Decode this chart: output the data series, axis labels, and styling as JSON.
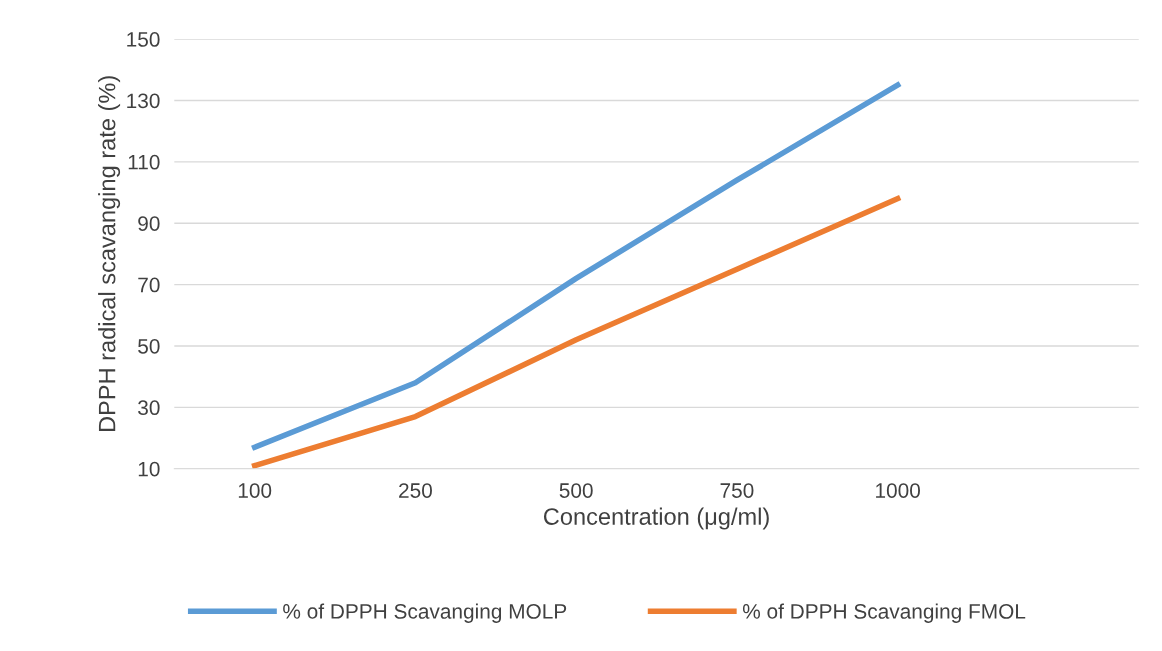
{
  "chart_data": {
    "type": "line",
    "xlabel": "Concentration (μg/ml)",
    "ylabel": "DPPH radical scavanging rate (%)",
    "categories": [
      "100",
      "250",
      "500",
      "750",
      "1000",
      null
    ],
    "series": [
      {
        "name": "% of DPPH Scavanging MOLP",
        "color": "#5b9bd5",
        "values": [
          17,
          38,
          72,
          104,
          135,
          null
        ]
      },
      {
        "name": "% of DPPH Scavanging FMOL",
        "color": "#ed7d31",
        "values": [
          11,
          27,
          52,
          75,
          98,
          null
        ]
      }
    ],
    "ylim": [
      10,
      150
    ],
    "yticks": [
      10,
      30,
      50,
      70,
      90,
      110,
      130,
      150
    ],
    "grid": "y",
    "legend": "bottom",
    "marker": "none",
    "line_style": "solid"
  }
}
